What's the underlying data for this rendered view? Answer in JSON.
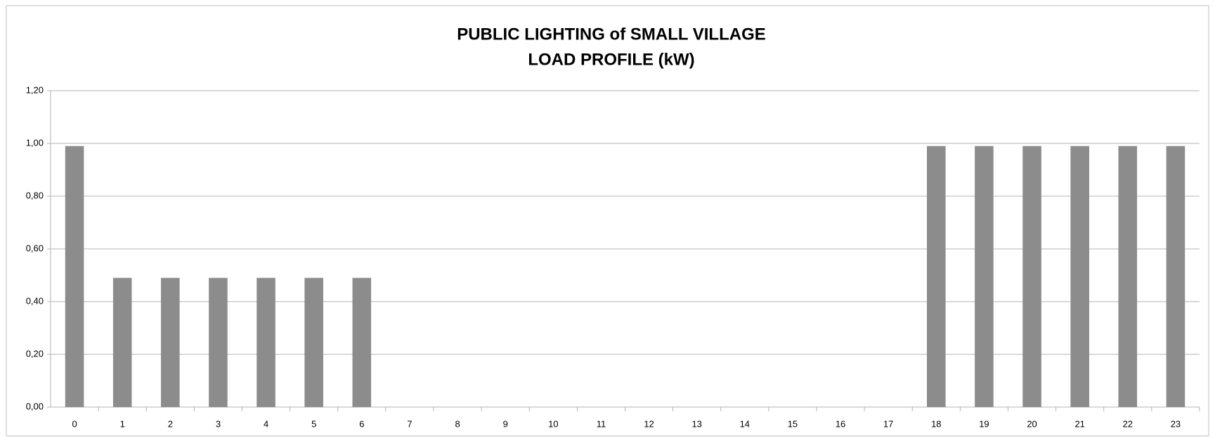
{
  "chart_data": {
    "type": "bar",
    "title_lines": [
      "PUBLIC LIGHTING of SMALL VILLAGE",
      "LOAD PROFILE (kW)"
    ],
    "categories": [
      "0",
      "1",
      "2",
      "3",
      "4",
      "5",
      "6",
      "7",
      "8",
      "9",
      "10",
      "11",
      "12",
      "13",
      "14",
      "15",
      "16",
      "17",
      "18",
      "19",
      "20",
      "21",
      "22",
      "23"
    ],
    "values": [
      0.99,
      0.49,
      0.49,
      0.49,
      0.49,
      0.49,
      0.49,
      0,
      0,
      0,
      0,
      0,
      0,
      0,
      0,
      0,
      0,
      0,
      0.99,
      0.99,
      0.99,
      0.99,
      0.99,
      0.99
    ],
    "color": "#8c8c8c",
    "ylim": [
      0,
      1.2
    ],
    "yticks": [
      {
        "value": 0,
        "label": "0,00"
      },
      {
        "value": 0.2,
        "label": "0,20"
      },
      {
        "value": 0.4,
        "label": "0,40"
      },
      {
        "value": 0.6,
        "label": "0,60"
      },
      {
        "value": 0.8,
        "label": "0,80"
      },
      {
        "value": 1.0,
        "label": "1,00"
      },
      {
        "value": 1.2,
        "label": "1,20"
      }
    ],
    "grid": true
  }
}
